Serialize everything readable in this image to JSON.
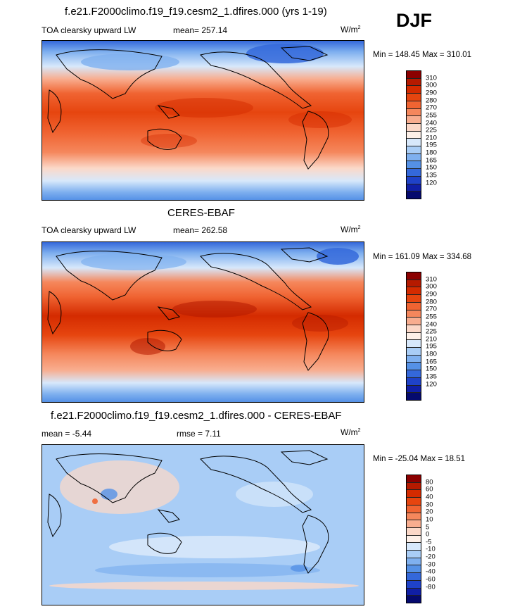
{
  "season": "DJF",
  "panels": [
    {
      "title": "f.e21.F2000climo.f19_f19.cesm2_1.dfires.000 (yrs 1-19)",
      "left_label": "TOA clearsky upward LW",
      "stat": "mean= 257.14",
      "units": "W/m",
      "units_sup": "2",
      "minmax": "Min = 148.45 Max = 310.01"
    },
    {
      "title": "CERES-EBAF",
      "left_label": "TOA clearsky upward LW",
      "stat": "mean= 262.58",
      "units": "W/m",
      "units_sup": "2",
      "minmax": "Min = 161.09 Max = 334.68"
    },
    {
      "title": "f.e21.F2000climo.f19_f19.cesm2_1.dfires.000 - CERES-EBAF",
      "left_label": "mean =  -5.44",
      "stat": "rmse =   7.11",
      "units": "W/m",
      "units_sup": "2",
      "minmax": "Min = -25.04 Max =  18.51"
    }
  ],
  "colorbars": {
    "abs": {
      "labels": [
        "310",
        "300",
        "290",
        "280",
        "270",
        "255",
        "240",
        "225",
        "210",
        "195",
        "180",
        "165",
        "150",
        "135",
        "120"
      ],
      "colors": [
        "#8b0000",
        "#b51a00",
        "#d42b00",
        "#e6450f",
        "#f06432",
        "#f5875c",
        "#f8ad8f",
        "#fbd8c8",
        "#fdf0e8",
        "#d7e8fb",
        "#a9cdf6",
        "#7fb0ef",
        "#5591e6",
        "#3468da",
        "#1f42c8",
        "#101fa6",
        "#050a6e"
      ]
    },
    "diff": {
      "labels": [
        "80",
        "60",
        "40",
        "30",
        "20",
        "10",
        "5",
        "0",
        "-5",
        "-10",
        "-20",
        "-30",
        "-40",
        "-60",
        "-80"
      ],
      "colors": [
        "#8b0000",
        "#b51a00",
        "#d42b00",
        "#e6450f",
        "#f06432",
        "#f5875c",
        "#f8ad8f",
        "#fbd8c8",
        "#fdf0e8",
        "#d7e8fb",
        "#a9cdf6",
        "#7fb0ef",
        "#5591e6",
        "#3468da",
        "#1f42c8",
        "#101fa6",
        "#050a6e"
      ]
    }
  }
}
